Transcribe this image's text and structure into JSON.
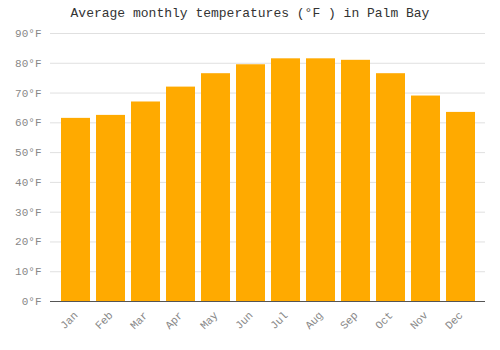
{
  "chart_data": {
    "type": "bar",
    "title": "Average monthly temperatures (°F ) in Palm Bay",
    "categories": [
      "Jan",
      "Feb",
      "Mar",
      "Apr",
      "May",
      "Jun",
      "Jul",
      "Aug",
      "Sep",
      "Oct",
      "Nov",
      "Dec"
    ],
    "values": [
      61.5,
      62.5,
      67,
      72,
      76.5,
      79.5,
      81.5,
      81.5,
      81,
      76.5,
      69,
      63.5
    ],
    "color": "#FFAA00",
    "ylim": [
      0,
      90
    ],
    "yticks": [
      {
        "value": 0,
        "label": "0°F"
      },
      {
        "value": 10,
        "label": "10°F"
      },
      {
        "value": 20,
        "label": "20°F"
      },
      {
        "value": 30,
        "label": "30°F"
      },
      {
        "value": 40,
        "label": "40°F"
      },
      {
        "value": 50,
        "label": "50°F"
      },
      {
        "value": 60,
        "label": "60°F"
      },
      {
        "value": 70,
        "label": "70°F"
      },
      {
        "value": 80,
        "label": "80°F"
      },
      {
        "value": 90,
        "label": "90°F"
      }
    ],
    "grid": true
  }
}
